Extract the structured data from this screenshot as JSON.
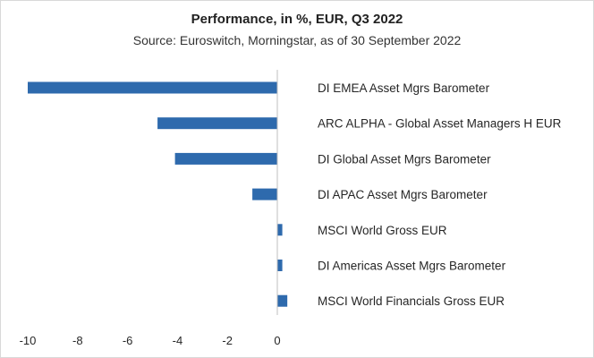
{
  "chart_data": {
    "type": "bar",
    "orientation": "horizontal",
    "title": "Performance, in %, EUR, Q3 2022",
    "subtitle": "Source: Euroswitch, Morningstar, as of 30 September 2022",
    "categories": [
      "DI EMEA Asset Mgrs Barometer",
      "ARC ALPHA - Global Asset Managers H EUR",
      "DI Global Asset Mgrs Barometer",
      "DI APAC Asset Mgrs Barometer",
      "MSCI World Gross EUR",
      "DI Americas Asset Mgrs Barometer",
      "MSCI World Financials Gross EUR"
    ],
    "values": [
      -10.0,
      -4.8,
      -4.1,
      -1.0,
      0.2,
      0.2,
      0.4
    ],
    "xlim": [
      -10,
      0
    ],
    "xticks": [
      -10,
      -8,
      -6,
      -4,
      -2,
      0
    ],
    "bar_color": "#2e6aad",
    "grid": false,
    "legend": "none"
  }
}
